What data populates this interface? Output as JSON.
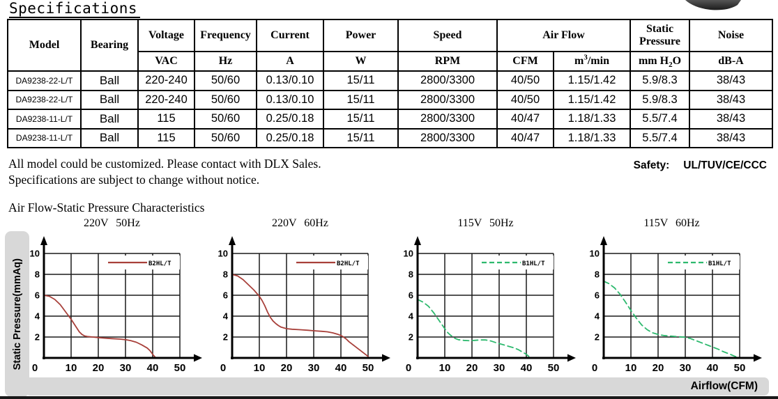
{
  "page": {
    "title": "Specifications"
  },
  "table": {
    "header": {
      "model": "Model",
      "bearing": "Bearing",
      "voltage": "Voltage",
      "frequency": "Frequency",
      "current": "Current",
      "power": "Power",
      "speed": "Speed",
      "airflow": "Air Flow",
      "static_pressure": "Static Pressure",
      "noise": "Noise",
      "units": {
        "voltage": "VAC",
        "frequency": "Hz",
        "current": "A",
        "power": "W",
        "speed": "RPM",
        "cfm": "CFM",
        "m3min_pre": "m",
        "m3min_sup": "3",
        "m3min_post": "/min",
        "mmh2o_pre": "mm H",
        "mmh2o_sub": "2",
        "mmh2o_post": "O",
        "noise": "dB-A"
      }
    },
    "rows": [
      [
        "DA9238-22-L/T",
        "Ball",
        "220-240",
        "50/60",
        "0.13/0.10",
        "15/11",
        "2800/3300",
        "40/50",
        "1.15/1.42",
        "5.9/8.3",
        "38/43"
      ],
      [
        "DA9238-22-L/T",
        "Ball",
        "220-240",
        "50/60",
        "0.13/0.10",
        "15/11",
        "2800/3300",
        "40/50",
        "1.15/1.42",
        "5.9/8.3",
        "38/43"
      ],
      [
        "DA9238-11-L/T",
        "Ball",
        "115",
        "50/60",
        "0.25/0.18",
        "15/11",
        "2800/3300",
        "40/47",
        "1.18/1.33",
        "5.5/7.4",
        "38/43"
      ],
      [
        "DA9238-11-L/T",
        "Ball",
        "115",
        "50/60",
        "0.25/0.18",
        "15/11",
        "2800/3300",
        "40/47",
        "1.18/1.33",
        "5.5/7.4",
        "38/43"
      ]
    ]
  },
  "notes": {
    "line1": "All model could be customized. Please contact with DLX Sales.",
    "line2": "Specifications are subject to change without notice."
  },
  "safety": {
    "label": "Safety:",
    "value": "UL/TUV/CE/CCC"
  },
  "section_title": "Air Flow-Static Pressure Characteristics",
  "axis_labels": {
    "y": "Static Pressure(mmAq)",
    "x": "Airflow(CFM)"
  },
  "colors": {
    "red_curve": "#a8403a",
    "green_curve": "#2db96e",
    "grid": "#1a1a1a",
    "axis": "#000000",
    "gray_bar": "#d8d8d8"
  },
  "chart_data": [
    {
      "type": "line",
      "title": "220V 50Hz",
      "legend": "B2HL/T",
      "color": "#a8403a",
      "dashed": false,
      "xlabel": "Airflow(CFM)",
      "ylabel": "Static Pressure(mmAq)",
      "xlim": [
        0,
        50
      ],
      "ylim": [
        0,
        10
      ],
      "xticks": [
        0,
        10,
        20,
        30,
        40,
        50
      ],
      "yticks": [
        0,
        2,
        4,
        6,
        8,
        10
      ],
      "grid": true,
      "points": [
        [
          0,
          6.0
        ],
        [
          2,
          5.9
        ],
        [
          4,
          5.6
        ],
        [
          6,
          5.1
        ],
        [
          8,
          4.4
        ],
        [
          10,
          3.7
        ],
        [
          12,
          2.9
        ],
        [
          13,
          2.5
        ],
        [
          14,
          2.25
        ],
        [
          15,
          2.1
        ],
        [
          16,
          2.05
        ],
        [
          18,
          2.0
        ],
        [
          20,
          1.95
        ],
        [
          22,
          1.9
        ],
        [
          25,
          1.85
        ],
        [
          28,
          1.8
        ],
        [
          30,
          1.75
        ],
        [
          32,
          1.65
        ],
        [
          34,
          1.5
        ],
        [
          36,
          1.25
        ],
        [
          38,
          0.95
        ],
        [
          39,
          0.7
        ],
        [
          40,
          0.35
        ],
        [
          41,
          0.05
        ]
      ]
    },
    {
      "type": "line",
      "title": "220V 60Hz",
      "legend": "B2HL/T",
      "color": "#a8403a",
      "dashed": false,
      "xlabel": "Airflow(CFM)",
      "ylabel": "Static Pressure(mmAq)",
      "xlim": [
        0,
        50
      ],
      "ylim": [
        0,
        10
      ],
      "xticks": [
        0,
        10,
        20,
        30,
        40,
        50
      ],
      "yticks": [
        0,
        2,
        4,
        6,
        8,
        10
      ],
      "grid": true,
      "points": [
        [
          0,
          8.0
        ],
        [
          2,
          7.85
        ],
        [
          4,
          7.5
        ],
        [
          6,
          7.0
        ],
        [
          8,
          6.5
        ],
        [
          10,
          5.9
        ],
        [
          11,
          5.5
        ],
        [
          12,
          5.0
        ],
        [
          13,
          4.4
        ],
        [
          14,
          3.9
        ],
        [
          15,
          3.55
        ],
        [
          16,
          3.3
        ],
        [
          17,
          3.1
        ],
        [
          18,
          2.95
        ],
        [
          20,
          2.8
        ],
        [
          22,
          2.75
        ],
        [
          25,
          2.7
        ],
        [
          28,
          2.65
        ],
        [
          30,
          2.6
        ],
        [
          33,
          2.55
        ],
        [
          35,
          2.5
        ],
        [
          37,
          2.4
        ],
        [
          39,
          2.25
        ],
        [
          40,
          2.15
        ],
        [
          41,
          2.0
        ],
        [
          42,
          1.8
        ],
        [
          43,
          1.55
        ],
        [
          44,
          1.35
        ],
        [
          45,
          1.15
        ],
        [
          46,
          0.95
        ],
        [
          47,
          0.75
        ],
        [
          48,
          0.55
        ],
        [
          49,
          0.35
        ],
        [
          50,
          0.15
        ]
      ]
    },
    {
      "type": "line",
      "title": "115V 50Hz",
      "legend": "B1HL/T",
      "color": "#2db96e",
      "dashed": true,
      "xlabel": "Airflow(CFM)",
      "ylabel": "Static Pressure(mmAq)",
      "xlim": [
        0,
        50
      ],
      "ylim": [
        0,
        10
      ],
      "xticks": [
        0,
        10,
        20,
        30,
        40,
        50
      ],
      "yticks": [
        0,
        2,
        4,
        6,
        8,
        10
      ],
      "grid": true,
      "points": [
        [
          0,
          5.6
        ],
        [
          2,
          5.35
        ],
        [
          4,
          4.95
        ],
        [
          6,
          4.3
        ],
        [
          8,
          3.55
        ],
        [
          10,
          2.8
        ],
        [
          11,
          2.45
        ],
        [
          12,
          2.2
        ],
        [
          13,
          2.0
        ],
        [
          14,
          1.85
        ],
        [
          15,
          1.75
        ],
        [
          17,
          1.68
        ],
        [
          19,
          1.65
        ],
        [
          21,
          1.68
        ],
        [
          23,
          1.72
        ],
        [
          25,
          1.72
        ],
        [
          27,
          1.62
        ],
        [
          29,
          1.45
        ],
        [
          31,
          1.3
        ],
        [
          33,
          1.15
        ],
        [
          35,
          1.0
        ],
        [
          37,
          0.8
        ],
        [
          39,
          0.5
        ],
        [
          40,
          0.35
        ],
        [
          41.5,
          0.02
        ]
      ]
    },
    {
      "type": "line",
      "title": "115V 60Hz",
      "legend": "B1HL/T",
      "color": "#2db96e",
      "dashed": true,
      "xlabel": "Airflow(CFM)",
      "ylabel": "Static Pressure(mmAq)",
      "xlim": [
        0,
        50
      ],
      "ylim": [
        0,
        10
      ],
      "xticks": [
        0,
        10,
        20,
        30,
        40,
        50
      ],
      "yticks": [
        0,
        2,
        4,
        6,
        8,
        10
      ],
      "grid": true,
      "points": [
        [
          0,
          7.35
        ],
        [
          2,
          7.1
        ],
        [
          4,
          6.7
        ],
        [
          6,
          6.1
        ],
        [
          8,
          5.35
        ],
        [
          10,
          4.55
        ],
        [
          12,
          3.8
        ],
        [
          14,
          3.15
        ],
        [
          16,
          2.7
        ],
        [
          18,
          2.4
        ],
        [
          20,
          2.25
        ],
        [
          22,
          2.15
        ],
        [
          25,
          2.08
        ],
        [
          28,
          2.02
        ],
        [
          30,
          1.98
        ],
        [
          32,
          1.85
        ],
        [
          34,
          1.65
        ],
        [
          36,
          1.45
        ],
        [
          38,
          1.25
        ],
        [
          40,
          1.05
        ],
        [
          42,
          0.85
        ],
        [
          44,
          0.6
        ],
        [
          46,
          0.4
        ],
        [
          48,
          0.18
        ],
        [
          49.5,
          0.02
        ]
      ]
    }
  ]
}
